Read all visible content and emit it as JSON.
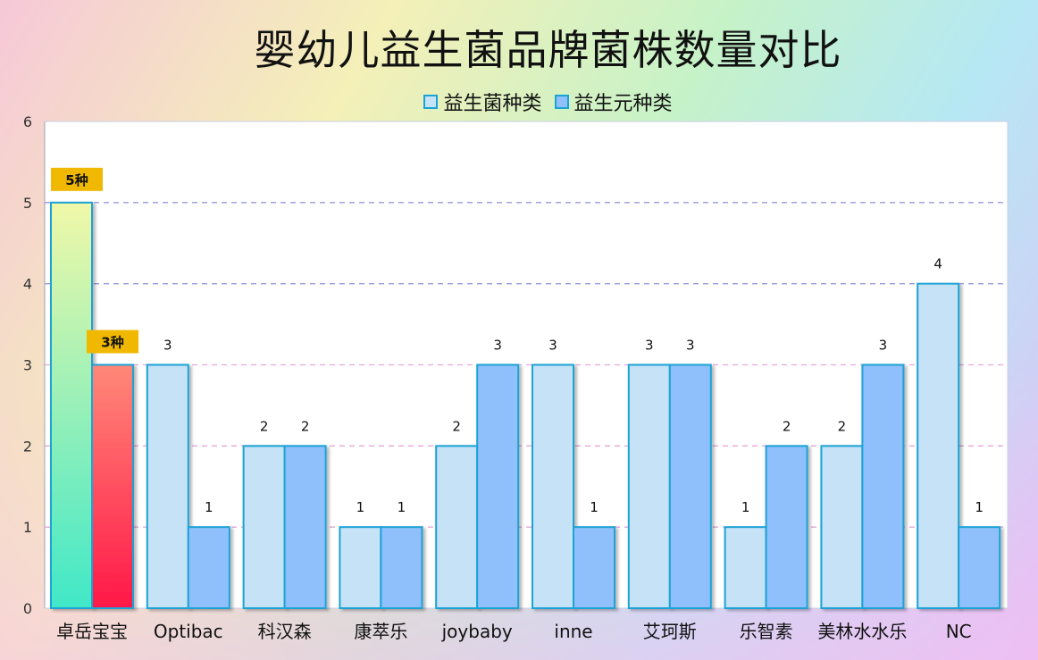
{
  "chart_data": {
    "type": "bar",
    "title": "婴幼儿益生菌品牌菌株数量对比",
    "categories": [
      "卓岳宝宝",
      "Optibac",
      "科汉森",
      "康萃乐",
      "joybaby",
      "inne",
      "艾珂斯",
      "乐智素",
      "美林水水乐",
      "NC"
    ],
    "series": [
      {
        "name": "益生菌种类",
        "values": [
          5,
          3,
          2,
          1,
          2,
          3,
          3,
          1,
          2,
          4
        ],
        "color": "#c6e2f6"
      },
      {
        "name": "益生元种类",
        "values": [
          3,
          1,
          2,
          1,
          3,
          1,
          3,
          2,
          3,
          1
        ],
        "color": "#90c0fc"
      }
    ],
    "highlight": {
      "category_index": 0,
      "labels": [
        "5种",
        "3种"
      ],
      "series_gradients": [
        [
          "#f0f8a8",
          "#40e8c8"
        ],
        [
          "#ff8878",
          "#ff1848"
        ]
      ],
      "label_bg": "#f0b800"
    },
    "bar_border_color": "#1aa3d6",
    "ylim": [
      0,
      6
    ],
    "yticks": [
      0,
      1,
      2,
      3,
      4,
      5,
      6
    ],
    "grid": "dashed-horizontal",
    "grid_colors": [
      "#9898dc",
      "#e6a6d8"
    ],
    "legend": "top-center",
    "xlabel": "",
    "ylabel": ""
  }
}
